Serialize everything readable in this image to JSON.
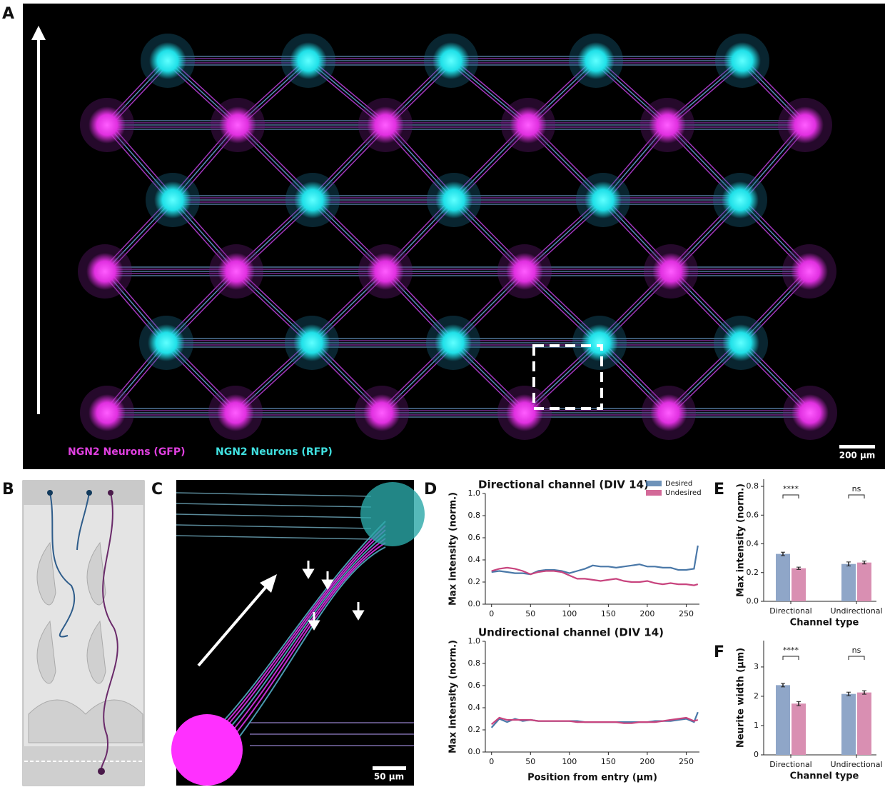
{
  "figure": {
    "panel_labels": [
      "A",
      "B",
      "C",
      "D",
      "E",
      "F"
    ],
    "panel_a": {
      "labels": [
        "NGN2 Neurons (GFP)",
        "NGN2 Neurons (RFP)"
      ],
      "scale_bar": "200 µm"
    },
    "panel_c": {
      "scale_bar": "50 µm"
    }
  },
  "chart_data": [
    {
      "type": "line",
      "title": "Directional channel (DIV 14)",
      "ylabel": "Max intensity (norm.)",
      "xlim": [
        -8,
        267
      ],
      "ylim": [
        0,
        1
      ],
      "xticks": [
        0,
        50,
        100,
        150,
        200,
        250
      ],
      "yticks": [
        {
          "value": 0,
          "label": "0.0"
        },
        0.2,
        0.4,
        0.6,
        0.8,
        {
          "value": 1,
          "label": "1.0"
        }
      ],
      "legend": "upper right",
      "x": [
        0,
        10,
        20,
        30,
        40,
        50,
        60,
        70,
        80,
        90,
        100,
        110,
        120,
        130,
        140,
        150,
        160,
        170,
        180,
        190,
        200,
        210,
        220,
        230,
        240,
        250,
        260,
        265
      ],
      "series": [
        {
          "name": "Desired",
          "color": "#4a78a8",
          "values": [
            0.29,
            0.3,
            0.29,
            0.28,
            0.28,
            0.27,
            0.3,
            0.31,
            0.31,
            0.3,
            0.28,
            0.3,
            0.32,
            0.35,
            0.34,
            0.34,
            0.33,
            0.34,
            0.35,
            0.36,
            0.34,
            0.34,
            0.33,
            0.33,
            0.31,
            0.31,
            0.32,
            0.53
          ]
        },
        {
          "name": "Undesired",
          "color": "#c8447e",
          "values": [
            0.3,
            0.32,
            0.33,
            0.32,
            0.3,
            0.27,
            0.29,
            0.3,
            0.3,
            0.29,
            0.26,
            0.23,
            0.23,
            0.22,
            0.21,
            0.22,
            0.23,
            0.21,
            0.2,
            0.2,
            0.21,
            0.19,
            0.18,
            0.19,
            0.18,
            0.18,
            0.17,
            0.18
          ]
        }
      ]
    },
    {
      "type": "line",
      "title": "Undirectional channel (DIV 14)",
      "xlabel": "Position from entry (µm)",
      "ylabel": "Max intensity (norm.)",
      "xlim": [
        -8,
        267
      ],
      "ylim": [
        0,
        1
      ],
      "xticks": [
        0,
        50,
        100,
        150,
        200,
        250
      ],
      "yticks": [
        {
          "value": 0,
          "label": "0.0"
        },
        0.2,
        0.4,
        0.6,
        0.8,
        {
          "value": 1,
          "label": "1.0"
        }
      ],
      "x": [
        0,
        10,
        20,
        30,
        40,
        50,
        60,
        70,
        80,
        90,
        100,
        110,
        120,
        130,
        140,
        150,
        160,
        170,
        180,
        190,
        200,
        210,
        220,
        230,
        240,
        250,
        260,
        265
      ],
      "series": [
        {
          "color": "#4a78a8",
          "values": [
            0.22,
            0.3,
            0.27,
            0.3,
            0.28,
            0.29,
            0.28,
            0.28,
            0.28,
            0.28,
            0.28,
            0.28,
            0.27,
            0.27,
            0.27,
            0.27,
            0.27,
            0.27,
            0.27,
            0.27,
            0.27,
            0.28,
            0.28,
            0.28,
            0.29,
            0.3,
            0.27,
            0.36
          ]
        },
        {
          "color": "#c8447e",
          "values": [
            0.25,
            0.31,
            0.29,
            0.29,
            0.29,
            0.29,
            0.28,
            0.28,
            0.28,
            0.28,
            0.28,
            0.27,
            0.27,
            0.27,
            0.27,
            0.27,
            0.27,
            0.26,
            0.26,
            0.27,
            0.27,
            0.27,
            0.28,
            0.29,
            0.3,
            0.31,
            0.28,
            0.29
          ]
        }
      ]
    },
    {
      "type": "bar",
      "xlabel": "Channel type",
      "ylabel": "Max intensity (norm.)",
      "ylim": [
        0,
        0.85
      ],
      "yticks": [
        {
          "value": 0,
          "label": "0.0"
        },
        0.2,
        0.4,
        0.6,
        0.8
      ],
      "categories": [
        "Directional",
        "Undirectional"
      ],
      "series": [
        {
          "name": "Desired",
          "color": "#8fa6c8",
          "values": [
            0.33,
            0.26
          ],
          "errors": [
            0.012,
            0.014
          ]
        },
        {
          "name": "Undesired",
          "color": "#d98fb2",
          "values": [
            0.23,
            0.27
          ],
          "errors": [
            0.008,
            0.01
          ]
        }
      ],
      "annotations": [
        "****",
        "ns"
      ]
    },
    {
      "type": "bar",
      "xlabel": "Channel type",
      "ylabel": "Neurite width (µm)",
      "ylim": [
        0,
        3.9
      ],
      "yticks": [
        0,
        1,
        2,
        3
      ],
      "categories": [
        "Directional",
        "Undirectional"
      ],
      "series": [
        {
          "name": "Desired",
          "color": "#8fa6c8",
          "values": [
            2.38,
            2.08
          ],
          "errors": [
            0.06,
            0.06
          ]
        },
        {
          "name": "Undesired",
          "color": "#d98fb2",
          "values": [
            1.75,
            2.13
          ],
          "errors": [
            0.07,
            0.06
          ]
        }
      ],
      "annotations": [
        "****",
        "ns"
      ]
    }
  ]
}
